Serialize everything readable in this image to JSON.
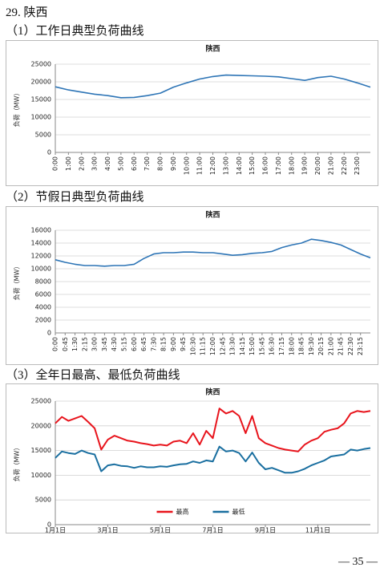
{
  "heading": "29. 陕西",
  "captions": [
    "（1）工作日典型负荷曲线",
    "（2）节假日典型负荷曲线",
    "（3）全年日最高、最低负荷曲线"
  ],
  "page_number": "— 35 —",
  "chart_data": [
    {
      "type": "line",
      "title": "陕西",
      "y_label": "负荷（MW）",
      "grid": true,
      "x_label_rotation": -90,
      "categories": [
        "0:00",
        "1:00",
        "2:00",
        "3:00",
        "4:00",
        "5:00",
        "6:00",
        "7:00",
        "8:00",
        "9:00",
        "10:00",
        "11:00",
        "12:00",
        "13:00",
        "14:00",
        "15:00",
        "16:00",
        "17:00",
        "18:00",
        "19:00",
        "20:00",
        "21:00",
        "22:00",
        "23:00",
        null
      ],
      "series": [
        {
          "color": "#2e75b6",
          "values": [
            18600,
            17700,
            17100,
            16500,
            16100,
            15500,
            15600,
            16100,
            16800,
            18500,
            19700,
            20800,
            21500,
            21900,
            21800,
            21700,
            21600,
            21400,
            20900,
            20400,
            21200,
            21600,
            20800,
            19700,
            18500
          ]
        }
      ],
      "ylim": [
        0,
        25000
      ],
      "yticks": [
        0,
        5000,
        10000,
        15000,
        20000,
        25000
      ]
    },
    {
      "type": "line",
      "title": "陕西",
      "y_label": "负荷（MW）",
      "grid": true,
      "x_label_rotation": -90,
      "categories": [
        "0:00",
        "0:45",
        "1:30",
        "2:15",
        "3:00",
        "3:45",
        "4:30",
        "5:15",
        "6:00",
        "6:45",
        "7:30",
        "8:15",
        "9:00",
        "9:45",
        "10:30",
        "11:15",
        "12:00",
        "12:45",
        "13:30",
        "14:15",
        "15:00",
        "15:45",
        "16:30",
        "17:15",
        "18:00",
        "18:45",
        "19:30",
        "20:15",
        "21:00",
        "21:45",
        "22:30",
        "23:15",
        null
      ],
      "series": [
        {
          "color": "#2e75b6",
          "values": [
            11400,
            11000,
            10700,
            10500,
            10500,
            10400,
            10500,
            10500,
            10700,
            11600,
            12300,
            12500,
            12500,
            12600,
            12600,
            12500,
            12500,
            12300,
            12100,
            12200,
            12400,
            12500,
            12700,
            13300,
            13700,
            14000,
            14600,
            14400,
            14100,
            13700,
            13000,
            12300,
            11700
          ]
        }
      ],
      "ylim": [
        0,
        16000
      ],
      "yticks": [
        0,
        2000,
        4000,
        6000,
        8000,
        10000,
        12000,
        14000,
        16000
      ]
    },
    {
      "type": "line",
      "title": "陕西",
      "y_label": "负荷（MW）",
      "grid": true,
      "x_label_rotation": 0,
      "legend": "bottom",
      "categories": [
        "1月1日",
        null,
        null,
        null,
        null,
        null,
        null,
        null,
        "3月1日",
        null,
        null,
        null,
        null,
        null,
        null,
        null,
        "5月1日",
        null,
        null,
        null,
        null,
        null,
        null,
        null,
        "7月1日",
        null,
        null,
        null,
        null,
        null,
        null,
        null,
        "9月1日",
        null,
        null,
        null,
        null,
        null,
        null,
        null,
        "11月1日",
        null,
        null,
        null,
        null,
        null,
        null,
        null,
        null
      ],
      "series": [
        {
          "name": "最高",
          "color": "#e8141c",
          "values": [
            20500,
            21800,
            21000,
            21500,
            22000,
            20800,
            19500,
            15200,
            17200,
            18000,
            17500,
            17000,
            16800,
            16500,
            16300,
            16000,
            16200,
            16000,
            16800,
            17000,
            16500,
            18500,
            16200,
            19000,
            17500,
            23500,
            22500,
            23000,
            22000,
            18500,
            22000,
            17500,
            16500,
            16000,
            15500,
            15200,
            15000,
            14800,
            16200,
            17000,
            17500,
            18800,
            19200,
            19500,
            20500,
            22500,
            23000,
            22800,
            23000
          ]
        },
        {
          "name": "最低",
          "color": "#1a6fa0",
          "values": [
            13500,
            14800,
            14500,
            14300,
            15000,
            14500,
            14200,
            10800,
            12000,
            12200,
            11900,
            11800,
            11500,
            11800,
            11600,
            11600,
            11800,
            11700,
            12000,
            12200,
            12300,
            12800,
            12500,
            13000,
            12800,
            15800,
            14800,
            15000,
            14500,
            12800,
            14600,
            12500,
            11200,
            11500,
            11000,
            10500,
            10500,
            10800,
            11300,
            12000,
            12500,
            13000,
            13800,
            14000,
            14200,
            15200,
            15000,
            15300,
            15500
          ]
        }
      ],
      "ylim": [
        0,
        25000
      ],
      "yticks": [
        0,
        5000,
        10000,
        15000,
        20000,
        25000
      ]
    }
  ]
}
